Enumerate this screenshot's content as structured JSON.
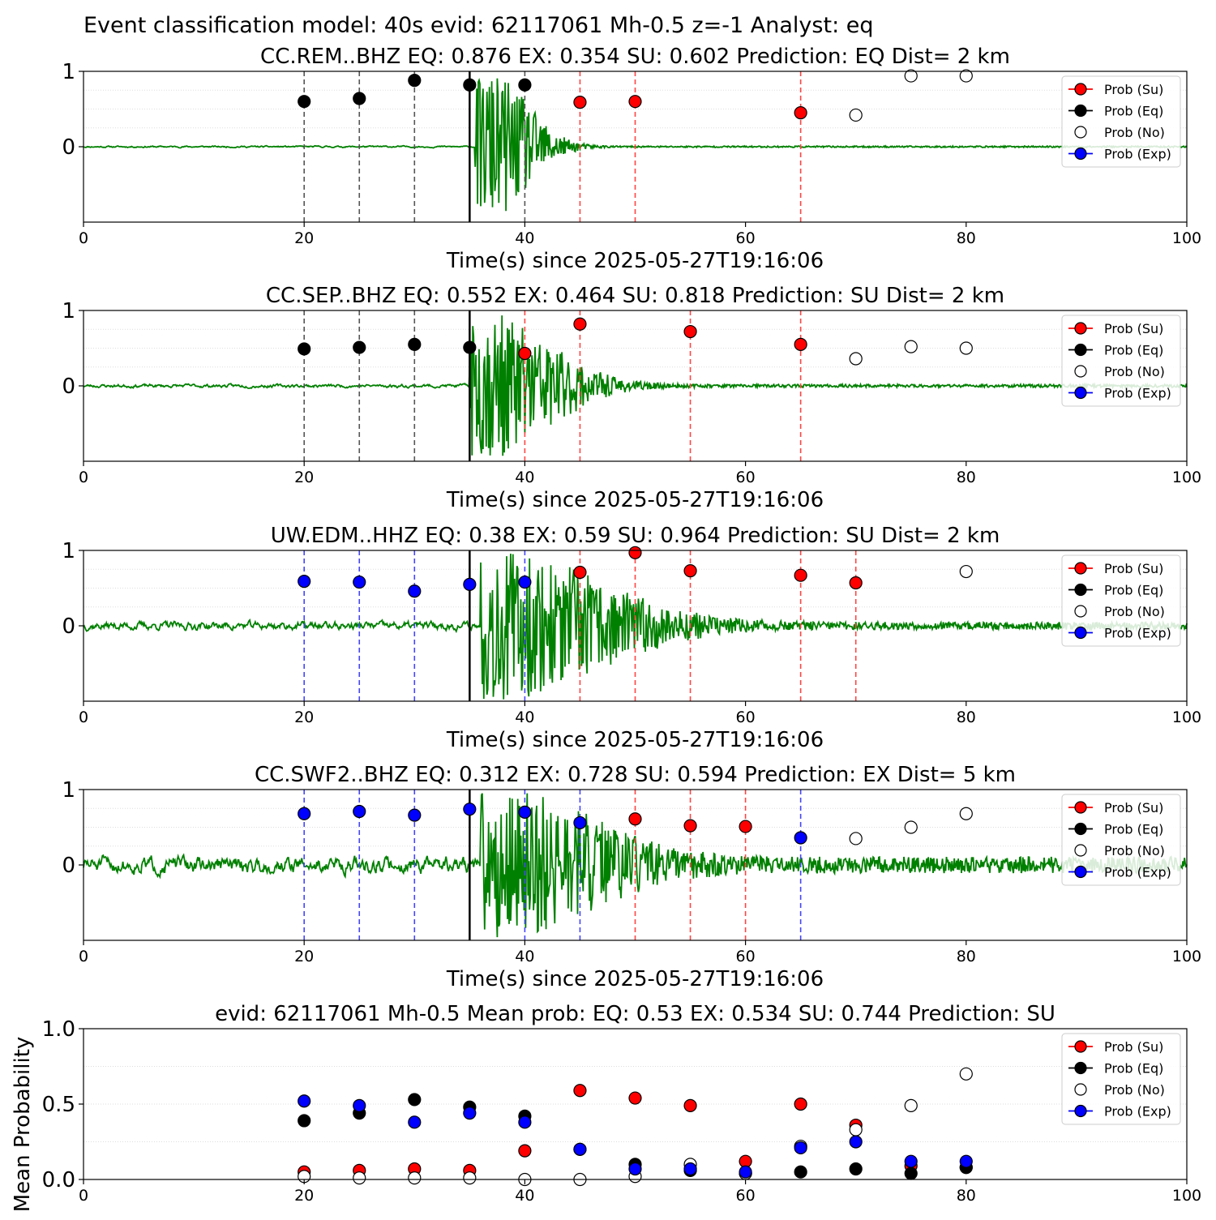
{
  "figure": {
    "suptitle": "Event classification model: 40s evid: 62117061 Mh-0.5 z=-1 Analyst: eq"
  },
  "legend": {
    "entries": [
      {
        "label": "Prob (Su)",
        "fill": "#ff0000",
        "line": "#ff0000"
      },
      {
        "label": "Prob (Eq)",
        "fill": "#000000",
        "line": "#000000"
      },
      {
        "label": "Prob (No)",
        "fill": "#ffffff",
        "line": "#ffffff"
      },
      {
        "label": "Prob (Exp)",
        "fill": "#0000ff",
        "line": "#0000ff"
      }
    ],
    "placement": "upper-right"
  },
  "colors": {
    "waveform": "#008000",
    "su": "#ff0000",
    "eq": "#000000",
    "no": "#ffffff",
    "exp": "#0000ff",
    "origin_line": "#000000",
    "eq_vline": "#555555",
    "su_vline": "#ff4444",
    "exp_vline": "#4444ff"
  },
  "chart_data": [
    {
      "type": "scatter",
      "title": "CC.REM..BHZ   EQ: 0.876  EX: 0.354  SU: 0.602   Prediction: EQ    Dist= 2 km",
      "xlabel": "Time(s) since 2025-05-27T19:16:06",
      "ylabel": "",
      "xlim": [
        0,
        100
      ],
      "ylim": [
        -1,
        1
      ],
      "xticks": [
        "0",
        "20",
        "40",
        "60",
        "80",
        "100"
      ],
      "yticks": [
        "0",
        "1"
      ],
      "origin_time": 35,
      "waveform": {
        "seed": 11,
        "noise": 0.012,
        "burst_start": 35.5,
        "burst_amp": 0.95,
        "decay": 3.2,
        "tail_noise": 0.01
      },
      "points": [
        {
          "x": 20,
          "y": 0.6,
          "cls": "eq",
          "vline": true
        },
        {
          "x": 25,
          "y": 0.64,
          "cls": "eq",
          "vline": true
        },
        {
          "x": 30,
          "y": 0.88,
          "cls": "eq",
          "vline": true
        },
        {
          "x": 35,
          "y": 0.82,
          "cls": "eq",
          "vline": false
        },
        {
          "x": 40,
          "y": 0.82,
          "cls": "eq",
          "vline": true
        },
        {
          "x": 45,
          "y": 0.59,
          "cls": "su",
          "vline": true
        },
        {
          "x": 50,
          "y": 0.6,
          "cls": "su",
          "vline": true
        },
        {
          "x": 65,
          "y": 0.45,
          "cls": "su",
          "vline": true
        },
        {
          "x": 70,
          "y": 0.42,
          "cls": "no",
          "vline": false
        },
        {
          "x": 75,
          "y": 0.94,
          "cls": "no",
          "vline": false
        },
        {
          "x": 80,
          "y": 0.94,
          "cls": "no",
          "vline": false
        }
      ]
    },
    {
      "type": "scatter",
      "title": "CC.SEP..BHZ   EQ: 0.552  EX: 0.464  SU: 0.818   Prediction: SU    Dist= 2 km",
      "xlabel": "Time(s) since 2025-05-27T19:16:06",
      "ylabel": "",
      "xlim": [
        0,
        100
      ],
      "ylim": [
        -1,
        1
      ],
      "xticks": [
        "0",
        "20",
        "40",
        "60",
        "80",
        "100"
      ],
      "yticks": [
        "0",
        "1"
      ],
      "origin_time": 35,
      "waveform": {
        "seed": 23,
        "noise": 0.025,
        "burst_start": 35.0,
        "burst_amp": 0.95,
        "decay": 5.5,
        "tail_noise": 0.02
      },
      "points": [
        {
          "x": 20,
          "y": 0.49,
          "cls": "eq",
          "vline": true
        },
        {
          "x": 25,
          "y": 0.51,
          "cls": "eq",
          "vline": true
        },
        {
          "x": 30,
          "y": 0.55,
          "cls": "eq",
          "vline": true
        },
        {
          "x": 35,
          "y": 0.51,
          "cls": "eq",
          "vline": false
        },
        {
          "x": 40,
          "y": 0.43,
          "cls": "su",
          "vline": true
        },
        {
          "x": 45,
          "y": 0.82,
          "cls": "su",
          "vline": true
        },
        {
          "x": 55,
          "y": 0.72,
          "cls": "su",
          "vline": true
        },
        {
          "x": 65,
          "y": 0.55,
          "cls": "su",
          "vline": true
        },
        {
          "x": 70,
          "y": 0.36,
          "cls": "no",
          "vline": false
        },
        {
          "x": 75,
          "y": 0.52,
          "cls": "no",
          "vline": false
        },
        {
          "x": 80,
          "y": 0.5,
          "cls": "no",
          "vline": false
        }
      ]
    },
    {
      "type": "scatter",
      "title": "UW.EDM..HHZ   EQ: 0.38  EX: 0.59  SU: 0.964   Prediction: SU    Dist= 2 km",
      "xlabel": "Time(s) since 2025-05-27T19:16:06",
      "ylabel": "",
      "xlim": [
        0,
        100
      ],
      "ylim": [
        -1,
        1
      ],
      "xticks": [
        "0",
        "20",
        "40",
        "60",
        "80",
        "100"
      ],
      "yticks": [
        "0",
        "1"
      ],
      "origin_time": 35,
      "waveform": {
        "seed": 37,
        "noise": 0.06,
        "burst_start": 36.0,
        "burst_amp": 0.95,
        "decay": 9.0,
        "tail_noise": 0.05
      },
      "points": [
        {
          "x": 20,
          "y": 0.59,
          "cls": "exp",
          "vline": true
        },
        {
          "x": 25,
          "y": 0.58,
          "cls": "exp",
          "vline": true
        },
        {
          "x": 30,
          "y": 0.46,
          "cls": "exp",
          "vline": true
        },
        {
          "x": 35,
          "y": 0.55,
          "cls": "exp",
          "vline": false
        },
        {
          "x": 40,
          "y": 0.58,
          "cls": "exp",
          "vline": true
        },
        {
          "x": 45,
          "y": 0.71,
          "cls": "su",
          "vline": true
        },
        {
          "x": 50,
          "y": 0.97,
          "cls": "su",
          "vline": true
        },
        {
          "x": 55,
          "y": 0.73,
          "cls": "su",
          "vline": true
        },
        {
          "x": 65,
          "y": 0.67,
          "cls": "su",
          "vline": true
        },
        {
          "x": 70,
          "y": 0.57,
          "cls": "su",
          "vline": true
        },
        {
          "x": 80,
          "y": 0.72,
          "cls": "no",
          "vline": false
        }
      ]
    },
    {
      "type": "scatter",
      "title": "CC.SWF2..BHZ   EQ: 0.312  EX: 0.728  SU: 0.594   Prediction: EX    Dist= 5 km",
      "xlabel": "Time(s) since 2025-05-27T19:16:06",
      "ylabel": "",
      "xlim": [
        0,
        100
      ],
      "ylim": [
        -1,
        1
      ],
      "xticks": [
        "0",
        "20",
        "40",
        "60",
        "80",
        "100"
      ],
      "yticks": [
        "0",
        "1"
      ],
      "origin_time": 35,
      "waveform": {
        "seed": 51,
        "noise": 0.12,
        "burst_start": 36.0,
        "burst_amp": 0.95,
        "decay": 8.0,
        "tail_noise": 0.11
      },
      "points": [
        {
          "x": 20,
          "y": 0.68,
          "cls": "exp",
          "vline": true
        },
        {
          "x": 25,
          "y": 0.71,
          "cls": "exp",
          "vline": true
        },
        {
          "x": 30,
          "y": 0.66,
          "cls": "exp",
          "vline": true
        },
        {
          "x": 35,
          "y": 0.74,
          "cls": "exp",
          "vline": false
        },
        {
          "x": 40,
          "y": 0.7,
          "cls": "exp",
          "vline": true
        },
        {
          "x": 45,
          "y": 0.56,
          "cls": "exp",
          "vline": true
        },
        {
          "x": 50,
          "y": 0.61,
          "cls": "su",
          "vline": true
        },
        {
          "x": 55,
          "y": 0.52,
          "cls": "su",
          "vline": true
        },
        {
          "x": 60,
          "y": 0.51,
          "cls": "su",
          "vline": true
        },
        {
          "x": 65,
          "y": 0.36,
          "cls": "exp",
          "vline": true
        },
        {
          "x": 70,
          "y": 0.35,
          "cls": "no",
          "vline": false
        },
        {
          "x": 75,
          "y": 0.5,
          "cls": "no",
          "vline": false
        },
        {
          "x": 80,
          "y": 0.68,
          "cls": "no",
          "vline": false
        }
      ]
    },
    {
      "type": "scatter",
      "title": "evid: 62117061  Mh-0.5   Mean prob:   EQ: 0.53  EX: 0.534  SU: 0.744   Prediction: SU",
      "xlabel": "",
      "ylabel": "Mean Probability",
      "xlim": [
        0,
        100
      ],
      "ylim": [
        0,
        1
      ],
      "xticks": [
        "0",
        "20",
        "40",
        "60",
        "80",
        "100"
      ],
      "yticks": [
        "0.0",
        "0.5",
        "1.0"
      ],
      "x": [
        20,
        25,
        30,
        35,
        40,
        45,
        50,
        55,
        60,
        65,
        70,
        75,
        80
      ],
      "series": [
        {
          "name": "Prob (Su)",
          "cls": "su",
          "values": [
            0.05,
            0.06,
            0.07,
            0.06,
            0.19,
            0.59,
            0.54,
            0.49,
            0.12,
            0.5,
            0.36,
            0.09,
            0.08
          ]
        },
        {
          "name": "Prob (Eq)",
          "cls": "eq",
          "values": [
            0.39,
            0.44,
            0.53,
            0.48,
            0.42,
            0.2,
            0.1,
            0.06,
            0.04,
            0.05,
            0.07,
            0.04,
            0.08
          ]
        },
        {
          "name": "Prob (No)",
          "cls": "no",
          "values": [
            0.02,
            0.01,
            0.01,
            0.01,
            0.0,
            0.0,
            0.02,
            0.1,
            0.04,
            0.22,
            0.33,
            0.49,
            0.7
          ]
        },
        {
          "name": "Prob (Exp)",
          "cls": "exp",
          "values": [
            0.52,
            0.49,
            0.38,
            0.44,
            0.38,
            0.2,
            0.07,
            0.07,
            0.05,
            0.21,
            0.25,
            0.12,
            0.12
          ]
        }
      ]
    }
  ]
}
